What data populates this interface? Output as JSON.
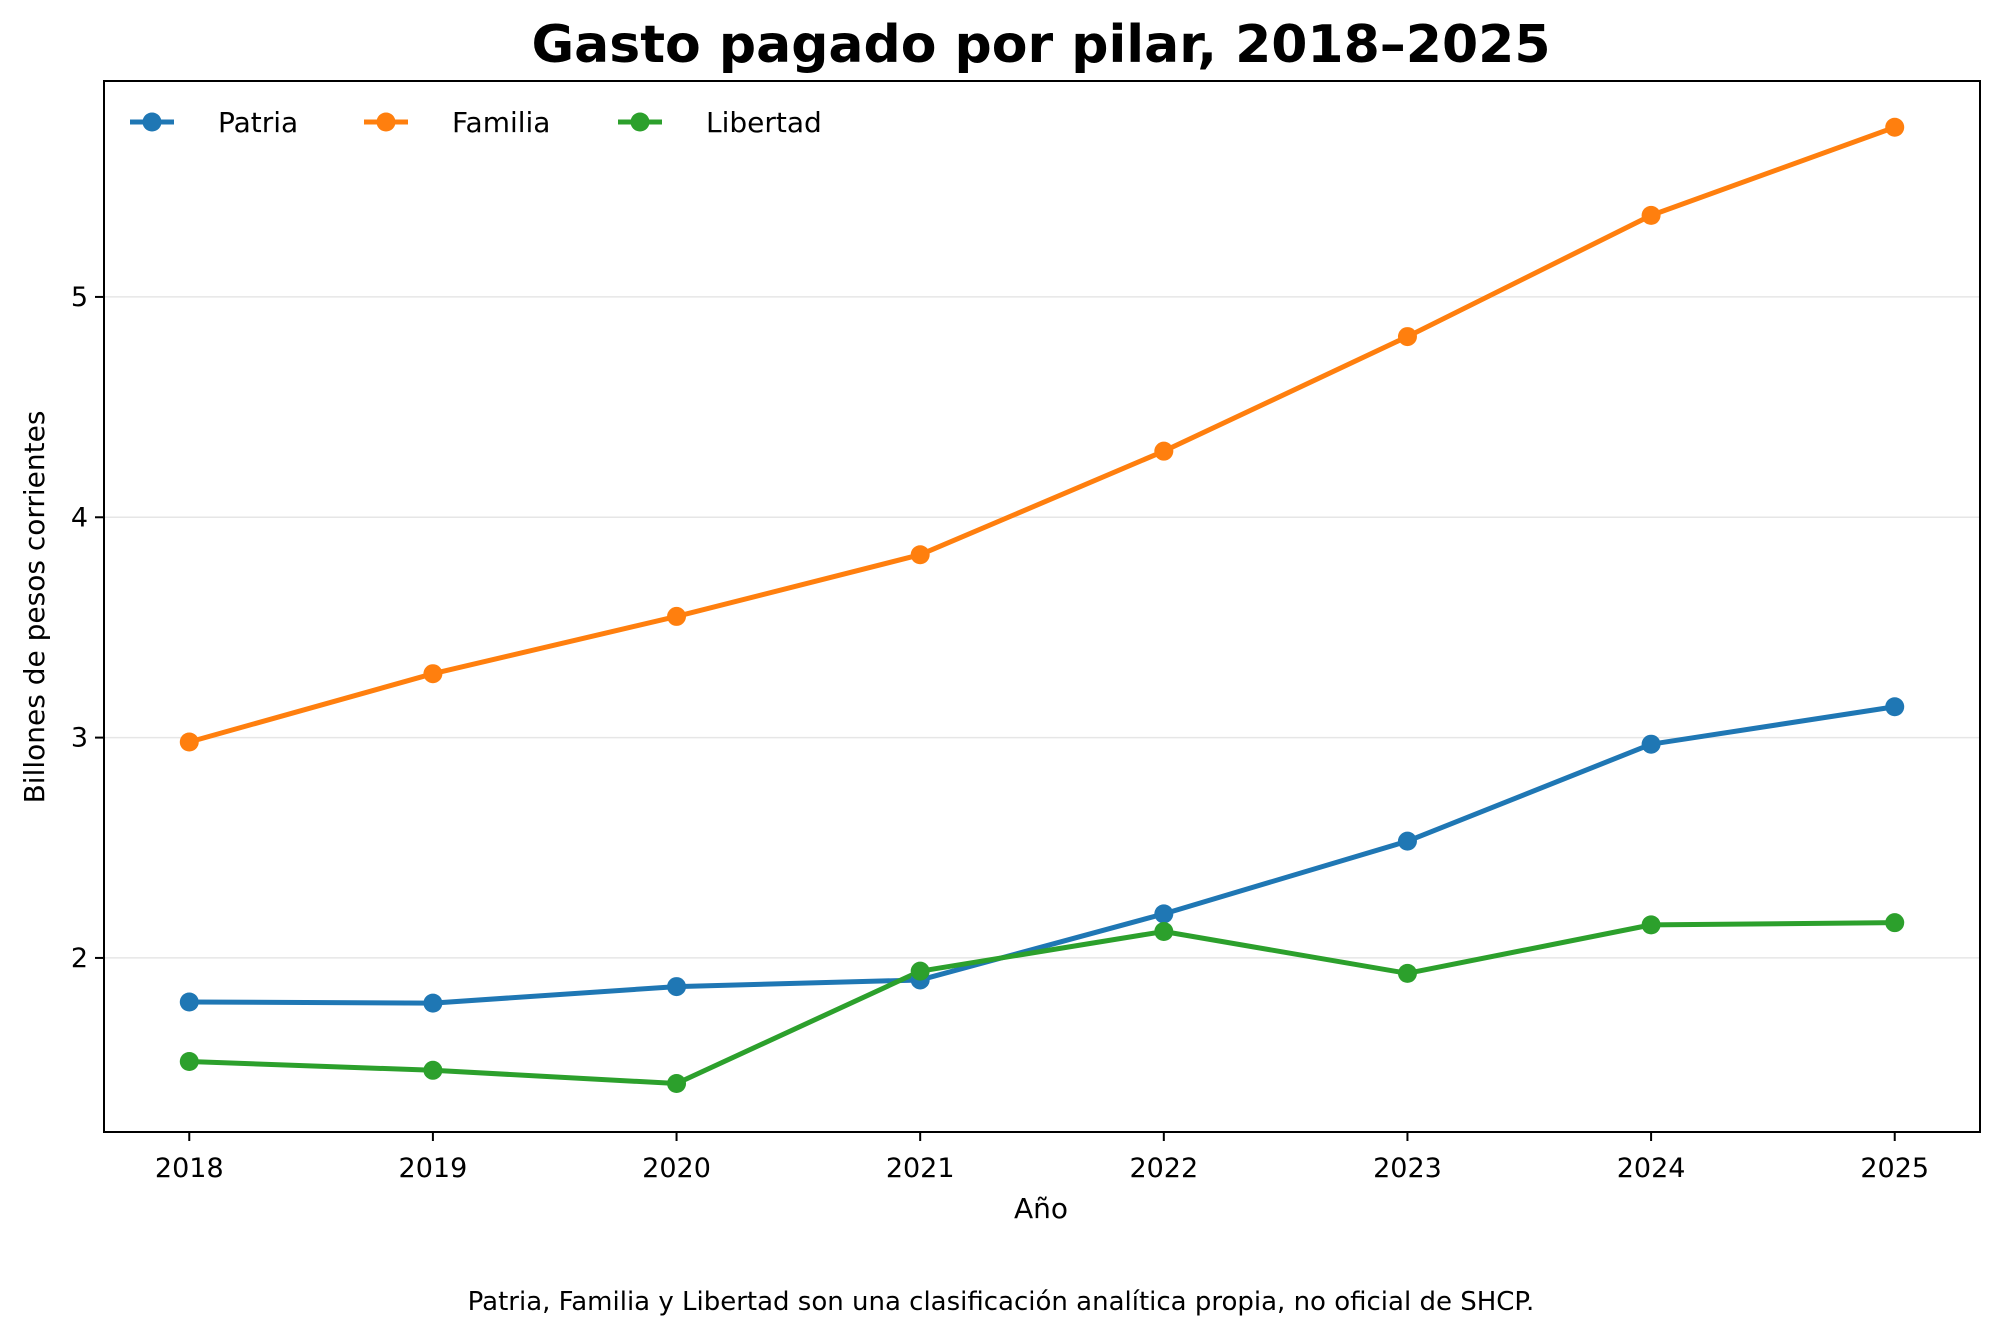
{
  "chart_data": {
    "type": "line",
    "title": "Gasto pagado por pilar, 2018–2025",
    "xlabel": "Año",
    "ylabel": "Billones de pesos corrientes",
    "x": [
      2018,
      2019,
      2020,
      2021,
      2022,
      2023,
      2024,
      2025
    ],
    "x_tick_labels": [
      "2018",
      "2019",
      "2020",
      "2021",
      "2022",
      "2023",
      "2024",
      "2025"
    ],
    "y_ticks": [
      2,
      3,
      4,
      5
    ],
    "y_tick_labels": [
      "2",
      "3",
      "4",
      "5"
    ],
    "xlim": [
      2017.65,
      2025.35
    ],
    "ylim": [
      1.21,
      5.98
    ],
    "grid": "horizontal",
    "legend_position": "top-left",
    "series": [
      {
        "name": "Patria",
        "color": "#1f77b4",
        "values": [
          1.8,
          1.795,
          1.87,
          1.9,
          2.2,
          2.53,
          2.97,
          3.14
        ]
      },
      {
        "name": "Familia",
        "color": "#ff7f0e",
        "values": [
          2.98,
          3.29,
          3.55,
          3.83,
          4.3,
          4.82,
          5.37,
          5.77
        ]
      },
      {
        "name": "Libertad",
        "color": "#2ca02c",
        "values": [
          1.53,
          1.49,
          1.43,
          1.94,
          2.12,
          1.93,
          2.15,
          2.16
        ]
      }
    ]
  },
  "footnote": "Patria, Familia y Libertad son una clasificación analítica propia, no oficial de SHCP."
}
